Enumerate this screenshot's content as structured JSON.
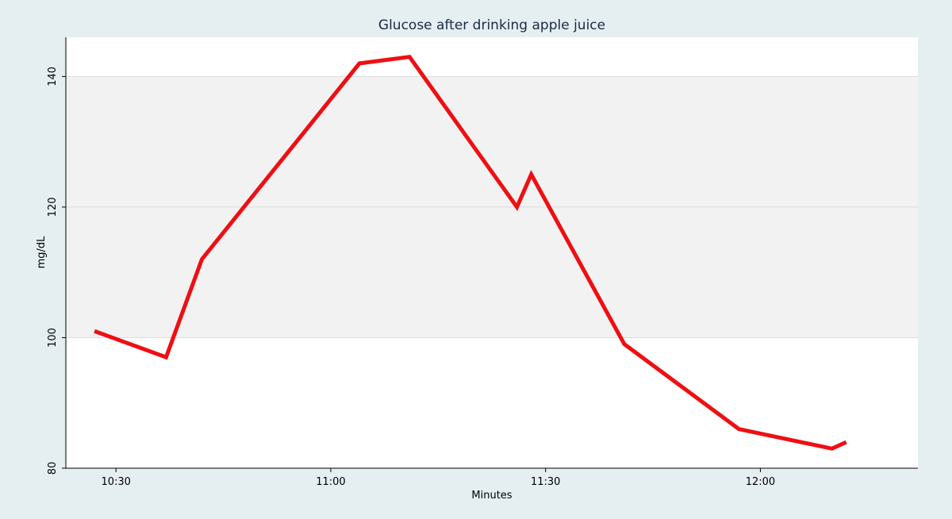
{
  "chart_data": {
    "type": "line",
    "title": "Glucose after drinking apple juice",
    "xlabel": "Minutes",
    "ylabel": "mg/dL",
    "x_ticks": [
      "10:30",
      "11:00",
      "11:30",
      "12:00"
    ],
    "x_range": [
      "10:23",
      "12:22"
    ],
    "y_ticks": [
      80,
      100,
      120,
      140
    ],
    "ylim": [
      80,
      146
    ],
    "band": {
      "from": 100,
      "to": 140,
      "color": "#f2f2f2"
    },
    "grid": true,
    "line_color": "#ee0f13",
    "series": [
      {
        "x": [
          "10:27",
          "10:37",
          "10:42",
          "11:04",
          "11:11",
          "11:26",
          "11:28",
          "11:41",
          "11:57",
          "12:10",
          "12:12"
        ],
        "y": [
          101,
          97,
          112,
          142,
          143,
          120,
          125,
          99,
          86,
          83,
          84
        ]
      }
    ]
  }
}
